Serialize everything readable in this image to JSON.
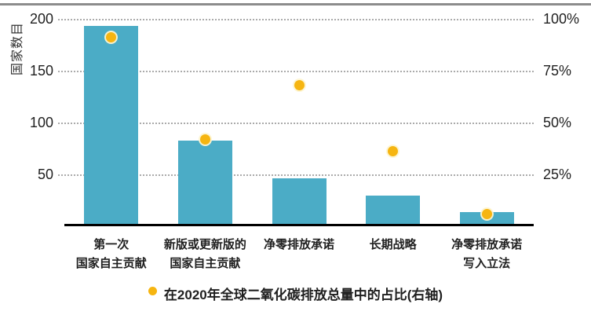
{
  "colors": {
    "bar": "#4BACC6",
    "dot": "#F6B511",
    "dot_ring": "#FDF4D0",
    "gridline": "#ABABAB",
    "baseline": "#000000",
    "top_rule": "#8C8C8C",
    "text": "#262626"
  },
  "chart_data": {
    "type": "bar",
    "title": "",
    "grid": "horizontal-dotted",
    "categories": [
      [
        "第一次",
        "国家自主贡献"
      ],
      [
        "新版或更新版的",
        "国家自主贡献"
      ],
      [
        "净零排放承诺"
      ],
      [
        "长期战略"
      ],
      [
        "净零排放承诺",
        "写入立法"
      ]
    ],
    "series": [
      {
        "name": "国家数目",
        "type": "bar",
        "axis": "left",
        "values": [
          191,
          80,
          44,
          27,
          11
        ]
      },
      {
        "name": "在2020年全球二氧化碳排放总量中的占比(右轴)",
        "type": "scatter",
        "axis": "right",
        "values": [
          91,
          42,
          68,
          36,
          6
        ],
        "unit": "%"
      }
    ],
    "left_axis": {
      "label": "国家数目",
      "min": 0,
      "max": 200,
      "ticks": [
        200,
        150,
        100,
        50
      ]
    },
    "right_axis": {
      "min": 0,
      "max": 100,
      "tick_labels": [
        "100%",
        "75%",
        "50%",
        "25%"
      ],
      "tick_values": [
        100,
        75,
        50,
        25
      ]
    },
    "legend": {
      "position": "bottom",
      "marker": "dot",
      "label": "在2020年全球二氧化碳排放总量中的占比(右轴)"
    }
  }
}
